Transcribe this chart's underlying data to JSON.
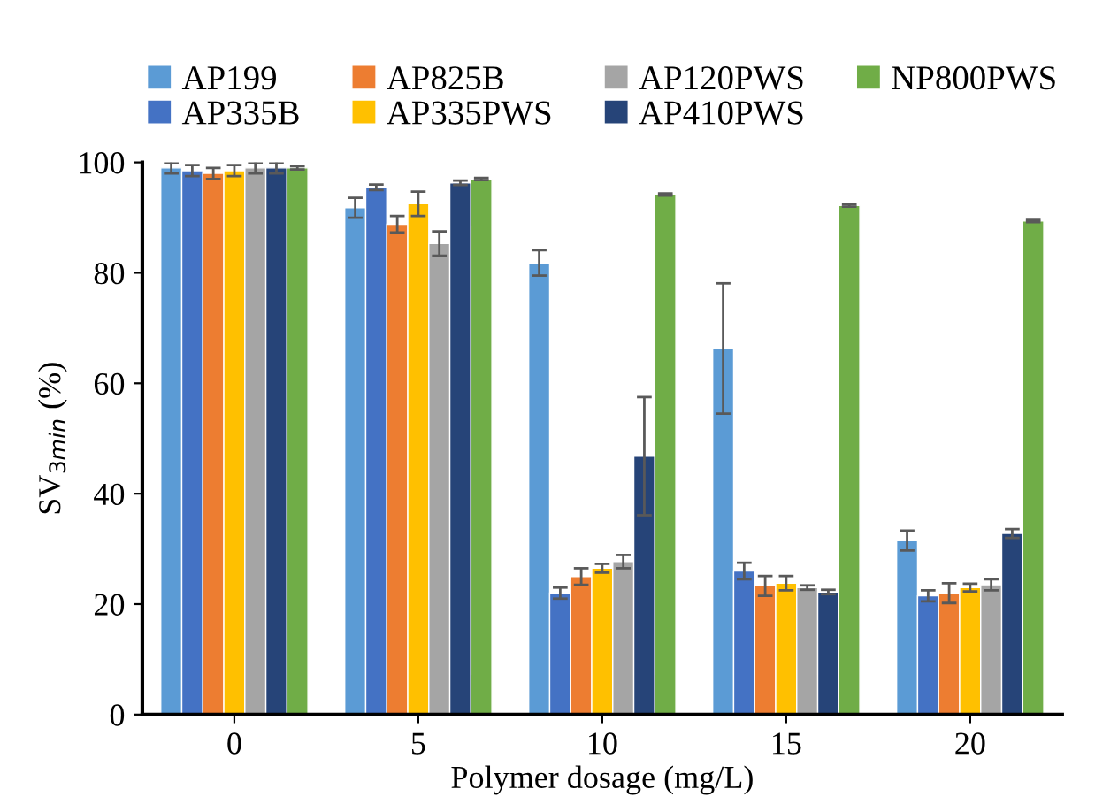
{
  "chart_data": {
    "type": "bar",
    "xlabel": "Polymer dosage (mg/L)",
    "ylabel": "SV$_{3min}$ (%)",
    "categories": [
      "0",
      "5",
      "10",
      "15",
      "20"
    ],
    "ylim": [
      0,
      100
    ],
    "yticks": [
      0,
      20,
      40,
      60,
      80,
      100
    ],
    "grid": false,
    "legend": "top",
    "series": [
      {
        "name": "AP199",
        "color": "#5b9bd5",
        "values": [
          99,
          91.8,
          81.8,
          66.3,
          31.5
        ],
        "errors": [
          1,
          1.8,
          2.3,
          11.8,
          1.8
        ]
      },
      {
        "name": "AP335B",
        "color": "#4472c4",
        "values": [
          98.5,
          95.5,
          22,
          26,
          21.5
        ],
        "errors": [
          1,
          0.5,
          1,
          1.5,
          1
        ]
      },
      {
        "name": "AP825B",
        "color": "#ed7d31",
        "values": [
          98,
          88.8,
          25,
          23.3,
          22
        ],
        "errors": [
          1,
          1.5,
          1.5,
          1.8,
          1.8
        ]
      },
      {
        "name": "AP335PWS",
        "color": "#ffc000",
        "values": [
          98.5,
          92.5,
          26.5,
          23.8,
          23
        ],
        "errors": [
          1,
          2.2,
          0.8,
          1.3,
          0.7
        ]
      },
      {
        "name": "AP120PWS",
        "color": "#a5a5a5",
        "values": [
          99,
          85.3,
          27.7,
          23,
          23.5
        ],
        "errors": [
          1,
          2.2,
          1.2,
          0.4,
          1
        ]
      },
      {
        "name": "AP410PWS",
        "color": "#264478",
        "values": [
          99,
          96.3,
          46.8,
          22.2,
          32.8
        ],
        "errors": [
          1,
          0.4,
          10.7,
          0.4,
          0.8
        ]
      },
      {
        "name": "NP800PWS",
        "color": "#70ad47",
        "values": [
          99,
          97,
          94.2,
          92.2,
          89.4
        ],
        "errors": [
          0.3,
          0.2,
          0.2,
          0.2,
          0.2
        ]
      }
    ]
  }
}
